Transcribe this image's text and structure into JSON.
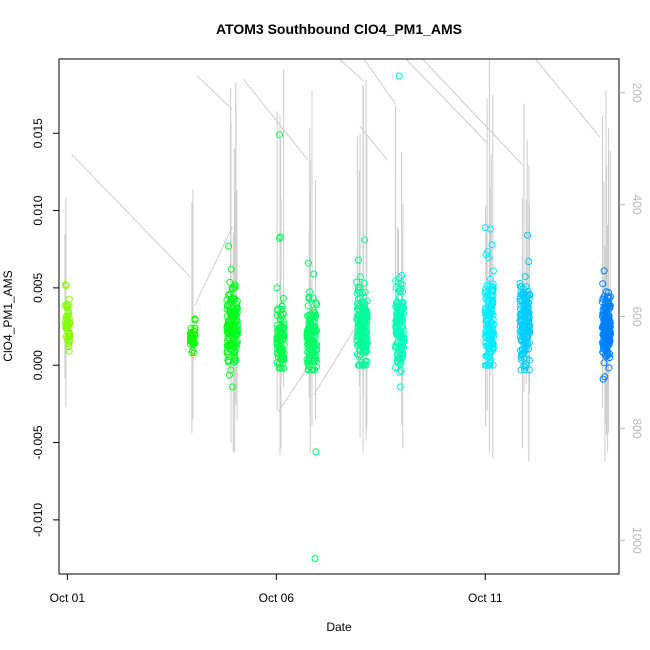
{
  "chart_data": {
    "type": "scatter",
    "title": "ATOM3 Southbound ClO4_PM1_AMS",
    "xlabel": "Date",
    "ylabel": "ClO4_PM1_AMS",
    "x_ticks": [
      "Oct 01",
      "Oct 06",
      "Oct 11"
    ],
    "y_ticks": [
      "-0.010",
      "-0.005",
      "0.000",
      "0.005",
      "0.010",
      "0.015"
    ],
    "y2_ticks": [
      "200",
      "400",
      "600",
      "800",
      "1000"
    ],
    "y2_reversed": true,
    "xlim_days": [
      0.8,
      14.2
    ],
    "ylim": [
      -0.0135,
      0.0198
    ],
    "y2lim": [
      140,
      1060
    ],
    "grid": false,
    "legend": "none",
    "colors": {
      "axis": "#000000",
      "right_axis": "#b8b8b8",
      "profile_line": "#cccccc",
      "point_start": "#80ff00",
      "point_mid": "#00ffff",
      "point_end": "#0080ff"
    },
    "series": [
      {
        "center_day": 1.0,
        "spread": 0.06,
        "mean": 0.0025,
        "sd": 0.0008,
        "n": 40,
        "min": 0.0009,
        "max": 0.0052,
        "outliers": []
      },
      {
        "center_day": 4.0,
        "spread": 0.06,
        "mean": 0.0017,
        "sd": 0.0005,
        "n": 30,
        "min": 0.0008,
        "max": 0.003,
        "outliers": []
      },
      {
        "center_day": 4.95,
        "spread": 0.13,
        "mean": 0.0025,
        "sd": 0.0014,
        "n": 150,
        "min": -0.0014,
        "max": 0.0062,
        "outliers": [
          0.0077
        ]
      },
      {
        "center_day": 6.1,
        "spread": 0.09,
        "mean": 0.0015,
        "sd": 0.001,
        "n": 90,
        "min": -0.0002,
        "max": 0.005,
        "outliers": [
          0.0083,
          0.0082,
          0.0149
        ]
      },
      {
        "center_day": 6.85,
        "spread": 0.12,
        "mean": 0.0018,
        "sd": 0.0013,
        "n": 130,
        "min": -0.0003,
        "max": 0.0066,
        "outliers": [
          -0.0056,
          -0.0125
        ]
      },
      {
        "center_day": 8.05,
        "spread": 0.13,
        "mean": 0.0025,
        "sd": 0.0014,
        "n": 150,
        "min": 0.0,
        "max": 0.0068,
        "outliers": [
          0.0081
        ]
      },
      {
        "center_day": 8.95,
        "spread": 0.1,
        "mean": 0.0025,
        "sd": 0.0013,
        "n": 120,
        "min": -0.0014,
        "max": 0.0058,
        "outliers": [
          0.0187
        ]
      },
      {
        "center_day": 11.1,
        "spread": 0.1,
        "mean": 0.0028,
        "sd": 0.0016,
        "n": 150,
        "min": 0.0,
        "max": 0.0078,
        "outliers": [
          0.0088,
          0.0089
        ]
      },
      {
        "center_day": 11.95,
        "spread": 0.12,
        "mean": 0.0025,
        "sd": 0.0013,
        "n": 150,
        "min": -0.0003,
        "max": 0.0067,
        "outliers": [
          0.0084
        ]
      },
      {
        "center_day": 13.9,
        "spread": 0.1,
        "mean": 0.0023,
        "sd": 0.0011,
        "n": 160,
        "min": -0.0009,
        "max": 0.0061,
        "outliers": []
      }
    ],
    "profile_connectors": [
      {
        "x": [
          1.1,
          3.95
        ],
        "y2": [
          310,
          530
        ]
      },
      {
        "x": [
          4.05,
          4.95
        ],
        "y2": [
          580,
          440
        ]
      },
      {
        "x": [
          4.1,
          4.95
        ],
        "y2": [
          170,
          230
        ]
      },
      {
        "x": [
          5.2,
          6.75
        ],
        "y2": [
          175,
          320
        ]
      },
      {
        "x": [
          6.05,
          6.85
        ],
        "y2": [
          770,
          680
        ]
      },
      {
        "x": [
          6.9,
          8.05
        ],
        "y2": [
          740,
          600
        ]
      },
      {
        "x": [
          7.0,
          7.55
        ],
        "y2": [
          140,
          140
        ]
      },
      {
        "x": [
          7.5,
          8.1
        ],
        "y2": [
          140,
          180
        ]
      },
      {
        "x": [
          8.0,
          8.65
        ],
        "y2": [
          260,
          320
        ]
      },
      {
        "x": [
          8.1,
          8.85
        ],
        "y2": [
          140,
          220
        ]
      },
      {
        "x": [
          9.1,
          11.05
        ],
        "y2": [
          140,
          290
        ]
      },
      {
        "x": [
          9.5,
          11.9
        ],
        "y2": [
          140,
          330
        ]
      },
      {
        "x": [
          12.2,
          13.75
        ],
        "y2": [
          140,
          280
        ]
      }
    ]
  }
}
